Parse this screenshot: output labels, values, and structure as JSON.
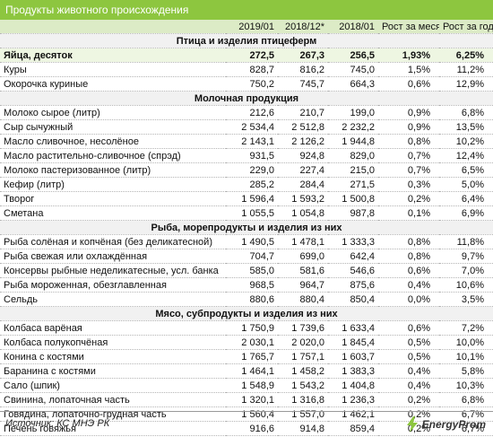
{
  "header": {
    "title": "Продукты животного происхождения"
  },
  "table": {
    "columns": [
      "",
      "2019/01",
      "2018/12*",
      "2018/01",
      "Рост за месяц",
      "Рост за год"
    ],
    "sections": [
      {
        "title": "Птица и изделия птицеферм",
        "rows": [
          [
            "Яйца, десяток",
            "272,5",
            "267,3",
            "256,5",
            "1,93%",
            "6,25%"
          ],
          [
            "Куры",
            "828,7",
            "816,2",
            "745,0",
            "1,5%",
            "11,2%"
          ],
          [
            "Окорочка куриные",
            "750,2",
            "745,7",
            "664,3",
            "0,6%",
            "12,9%"
          ]
        ]
      },
      {
        "title": "Молочная продукция",
        "rows": [
          [
            "Молоко сырое (литр)",
            "212,6",
            "210,7",
            "199,0",
            "0,9%",
            "6,8%"
          ],
          [
            "Сыр сычужный",
            "2 534,4",
            "2 512,8",
            "2 232,2",
            "0,9%",
            "13,5%"
          ],
          [
            "Масло сливочное, несолёное",
            "2 143,1",
            "2 126,2",
            "1 944,8",
            "0,8%",
            "10,2%"
          ],
          [
            "Масло растительно-сливочное (спрэд)",
            "931,5",
            "924,8",
            "829,0",
            "0,7%",
            "12,4%"
          ],
          [
            "Молоко пастеризованное (литр)",
            "229,0",
            "227,4",
            "215,0",
            "0,7%",
            "6,5%"
          ],
          [
            "Кефир (литр)",
            "285,2",
            "284,4",
            "271,5",
            "0,3%",
            "5,0%"
          ],
          [
            "Творог",
            "1 596,4",
            "1 593,2",
            "1 500,8",
            "0,2%",
            "6,4%"
          ],
          [
            "Сметана",
            "1 055,5",
            "1 054,8",
            "987,8",
            "0,1%",
            "6,9%"
          ]
        ]
      },
      {
        "title": "Рыба, морепродукты и изделия из них",
        "rows": [
          [
            "Рыба солёная и копчёная (без деликатесной)",
            "1 490,5",
            "1 478,1",
            "1 333,3",
            "0,8%",
            "11,8%"
          ],
          [
            "Рыба свежая или охлаждённая",
            "704,7",
            "699,0",
            "642,4",
            "0,8%",
            "9,7%"
          ],
          [
            "Консервы рыбные неделикатесные, усл. банка",
            "585,0",
            "581,6",
            "546,6",
            "0,6%",
            "7,0%"
          ],
          [
            "Рыба мороженная, обезглавленная",
            "968,5",
            "964,7",
            "875,6",
            "0,4%",
            "10,6%"
          ],
          [
            "Сельдь",
            "880,6",
            "880,4",
            "850,4",
            "0,0%",
            "3,5%"
          ]
        ]
      },
      {
        "title": "Мясо, субпродукты и изделия из них",
        "rows": [
          [
            "Колбаса варёная",
            "1 750,9",
            "1 739,6",
            "1 633,4",
            "0,6%",
            "7,2%"
          ],
          [
            "Колбаса полукопчёная",
            "2 030,1",
            "2 020,0",
            "1 845,4",
            "0,5%",
            "10,0%"
          ],
          [
            "Конина с костями",
            "1 765,7",
            "1 757,1",
            "1 603,7",
            "0,5%",
            "10,1%"
          ],
          [
            "Баранина с костями",
            "1 464,1",
            "1 458,2",
            "1 383,3",
            "0,4%",
            "5,8%"
          ],
          [
            "Сало (шпик)",
            "1 548,9",
            "1 543,2",
            "1 404,8",
            "0,4%",
            "10,3%"
          ],
          [
            "Свинина, лопаточная часть",
            "1 320,1",
            "1 316,8",
            "1 236,3",
            "0,2%",
            "6,8%"
          ],
          [
            "Говядина, лопаточно-грудная часть",
            "1 560,4",
            "1 557,0",
            "1 462,1",
            "0,2%",
            "6,7%"
          ],
          [
            "Печень говяжья",
            "916,6",
            "914,8",
            "859,4",
            "0,2%",
            "6,7%"
          ]
        ]
      }
    ]
  },
  "footer": {
    "source": "Источник: КС МНЭ РК",
    "logo": "EnergyProm"
  }
}
